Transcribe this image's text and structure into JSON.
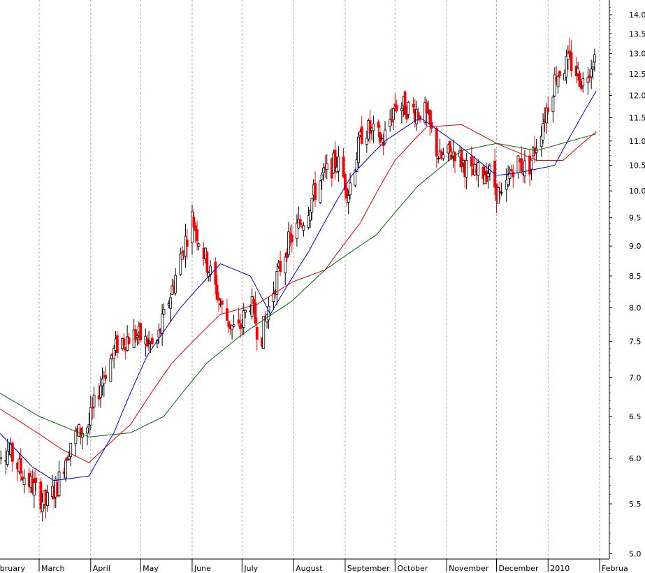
{
  "chart_data": {
    "type": "candlestick",
    "title": "",
    "xlabel": "",
    "ylabel": "",
    "y_scale": "log",
    "ylim": [
      4.95,
      14.4
    ],
    "grid": "vertical-dashed",
    "y_ticks": [
      "5.0",
      "5.5",
      "6.0",
      "6.5",
      "7.0",
      "7.5",
      "8.0",
      "8.5",
      "9.0",
      "9.5",
      "10.0",
      "10.5",
      "11.0",
      "11.5",
      "12.0",
      "12.5",
      "13.0",
      "13.5",
      "14.0"
    ],
    "x_ticks": [
      "ebruary",
      "March",
      "April",
      "May",
      "June",
      "July",
      "August",
      "September",
      "October",
      "November",
      "December",
      "2010",
      "Februa"
    ],
    "colors": {
      "up_candle": "#000000",
      "down_candle": "#ff0000",
      "ma_fast": "#0000cc",
      "ma_mid": "#dd0000",
      "ma_slow": "#006600",
      "grid": "#aaaaaa"
    },
    "price_anchors": [
      [
        "2009-02-10",
        6.1
      ],
      [
        "2009-02-20",
        5.8
      ],
      [
        "2009-03-05",
        5.5
      ],
      [
        "2009-03-12",
        5.7
      ],
      [
        "2009-03-20",
        6.2
      ],
      [
        "2009-03-31",
        6.4
      ],
      [
        "2009-04-08",
        7.0
      ],
      [
        "2009-04-18",
        7.5
      ],
      [
        "2009-04-28",
        7.6
      ],
      [
        "2009-05-10",
        7.4
      ],
      [
        "2009-05-20",
        8.3
      ],
      [
        "2009-06-01",
        9.5
      ],
      [
        "2009-06-10",
        8.7
      ],
      [
        "2009-06-20",
        7.9
      ],
      [
        "2009-06-28",
        7.6
      ],
      [
        "2009-07-06",
        8.1
      ],
      [
        "2009-07-12",
        7.5
      ],
      [
        "2009-07-20",
        8.3
      ],
      [
        "2009-07-28",
        9.0
      ],
      [
        "2009-08-07",
        9.5
      ],
      [
        "2009-08-17",
        10.2
      ],
      [
        "2009-08-27",
        10.6
      ],
      [
        "2009-09-03",
        10.0
      ],
      [
        "2009-09-12",
        11.3
      ],
      [
        "2009-09-24",
        11.0
      ],
      [
        "2009-10-01",
        11.8
      ],
      [
        "2009-10-10",
        11.7
      ],
      [
        "2009-10-19",
        11.6
      ],
      [
        "2009-10-28",
        10.6
      ],
      [
        "2009-11-06",
        10.8
      ],
      [
        "2009-11-16",
        10.3
      ],
      [
        "2009-11-26",
        10.4
      ],
      [
        "2009-12-04",
        9.8
      ],
      [
        "2009-12-12",
        10.6
      ],
      [
        "2009-12-20",
        10.4
      ],
      [
        "2009-12-28",
        11.3
      ],
      [
        "2010-01-06",
        12.5
      ],
      [
        "2010-01-14",
        12.8
      ],
      [
        "2010-01-22",
        12.3
      ],
      [
        "2010-01-28",
        12.9
      ]
    ],
    "ma_fast_anchors": [
      [
        "2009-02-05",
        6.3
      ],
      [
        "2009-02-25",
        5.9
      ],
      [
        "2009-03-10",
        5.75
      ],
      [
        "2009-03-31",
        5.8
      ],
      [
        "2009-04-15",
        6.3
      ],
      [
        "2009-05-05",
        7.3
      ],
      [
        "2009-05-25",
        8.0
      ],
      [
        "2009-06-18",
        8.7
      ],
      [
        "2009-07-06",
        8.5
      ],
      [
        "2009-07-18",
        7.9
      ],
      [
        "2009-08-10",
        8.9
      ],
      [
        "2009-09-05",
        10.3
      ],
      [
        "2009-09-25",
        11.0
      ],
      [
        "2009-10-16",
        11.5
      ],
      [
        "2009-11-05",
        11.0
      ],
      [
        "2009-12-01",
        10.3
      ],
      [
        "2009-12-14",
        10.35
      ],
      [
        "2010-01-05",
        10.5
      ],
      [
        "2010-01-30",
        12.1
      ]
    ],
    "ma_mid_anchors": [
      [
        "2009-02-05",
        6.6
      ],
      [
        "2009-03-15",
        6.1
      ],
      [
        "2009-03-31",
        5.95
      ],
      [
        "2009-04-25",
        6.4
      ],
      [
        "2009-05-20",
        7.2
      ],
      [
        "2009-06-18",
        7.9
      ],
      [
        "2009-07-10",
        8.05
      ],
      [
        "2009-07-31",
        8.4
      ],
      [
        "2009-08-20",
        8.6
      ],
      [
        "2009-09-10",
        9.4
      ],
      [
        "2009-10-01",
        10.6
      ],
      [
        "2009-10-20",
        11.3
      ],
      [
        "2009-11-10",
        11.35
      ],
      [
        "2009-12-01",
        10.95
      ],
      [
        "2009-12-25",
        10.6
      ],
      [
        "2010-01-10",
        10.6
      ],
      [
        "2010-01-30",
        11.2
      ]
    ],
    "ma_slow_anchors": [
      [
        "2009-02-05",
        6.8
      ],
      [
        "2009-03-01",
        6.5
      ],
      [
        "2009-03-31",
        6.25
      ],
      [
        "2009-04-25",
        6.3
      ],
      [
        "2009-05-15",
        6.5
      ],
      [
        "2009-06-10",
        7.2
      ],
      [
        "2009-07-01",
        7.6
      ],
      [
        "2009-07-31",
        8.1
      ],
      [
        "2009-08-20",
        8.6
      ],
      [
        "2009-09-20",
        9.2
      ],
      [
        "2009-10-15",
        10.1
      ],
      [
        "2009-11-10",
        10.8
      ],
      [
        "2009-12-01",
        10.95
      ],
      [
        "2009-12-25",
        10.8
      ],
      [
        "2010-01-30",
        11.15
      ]
    ]
  }
}
